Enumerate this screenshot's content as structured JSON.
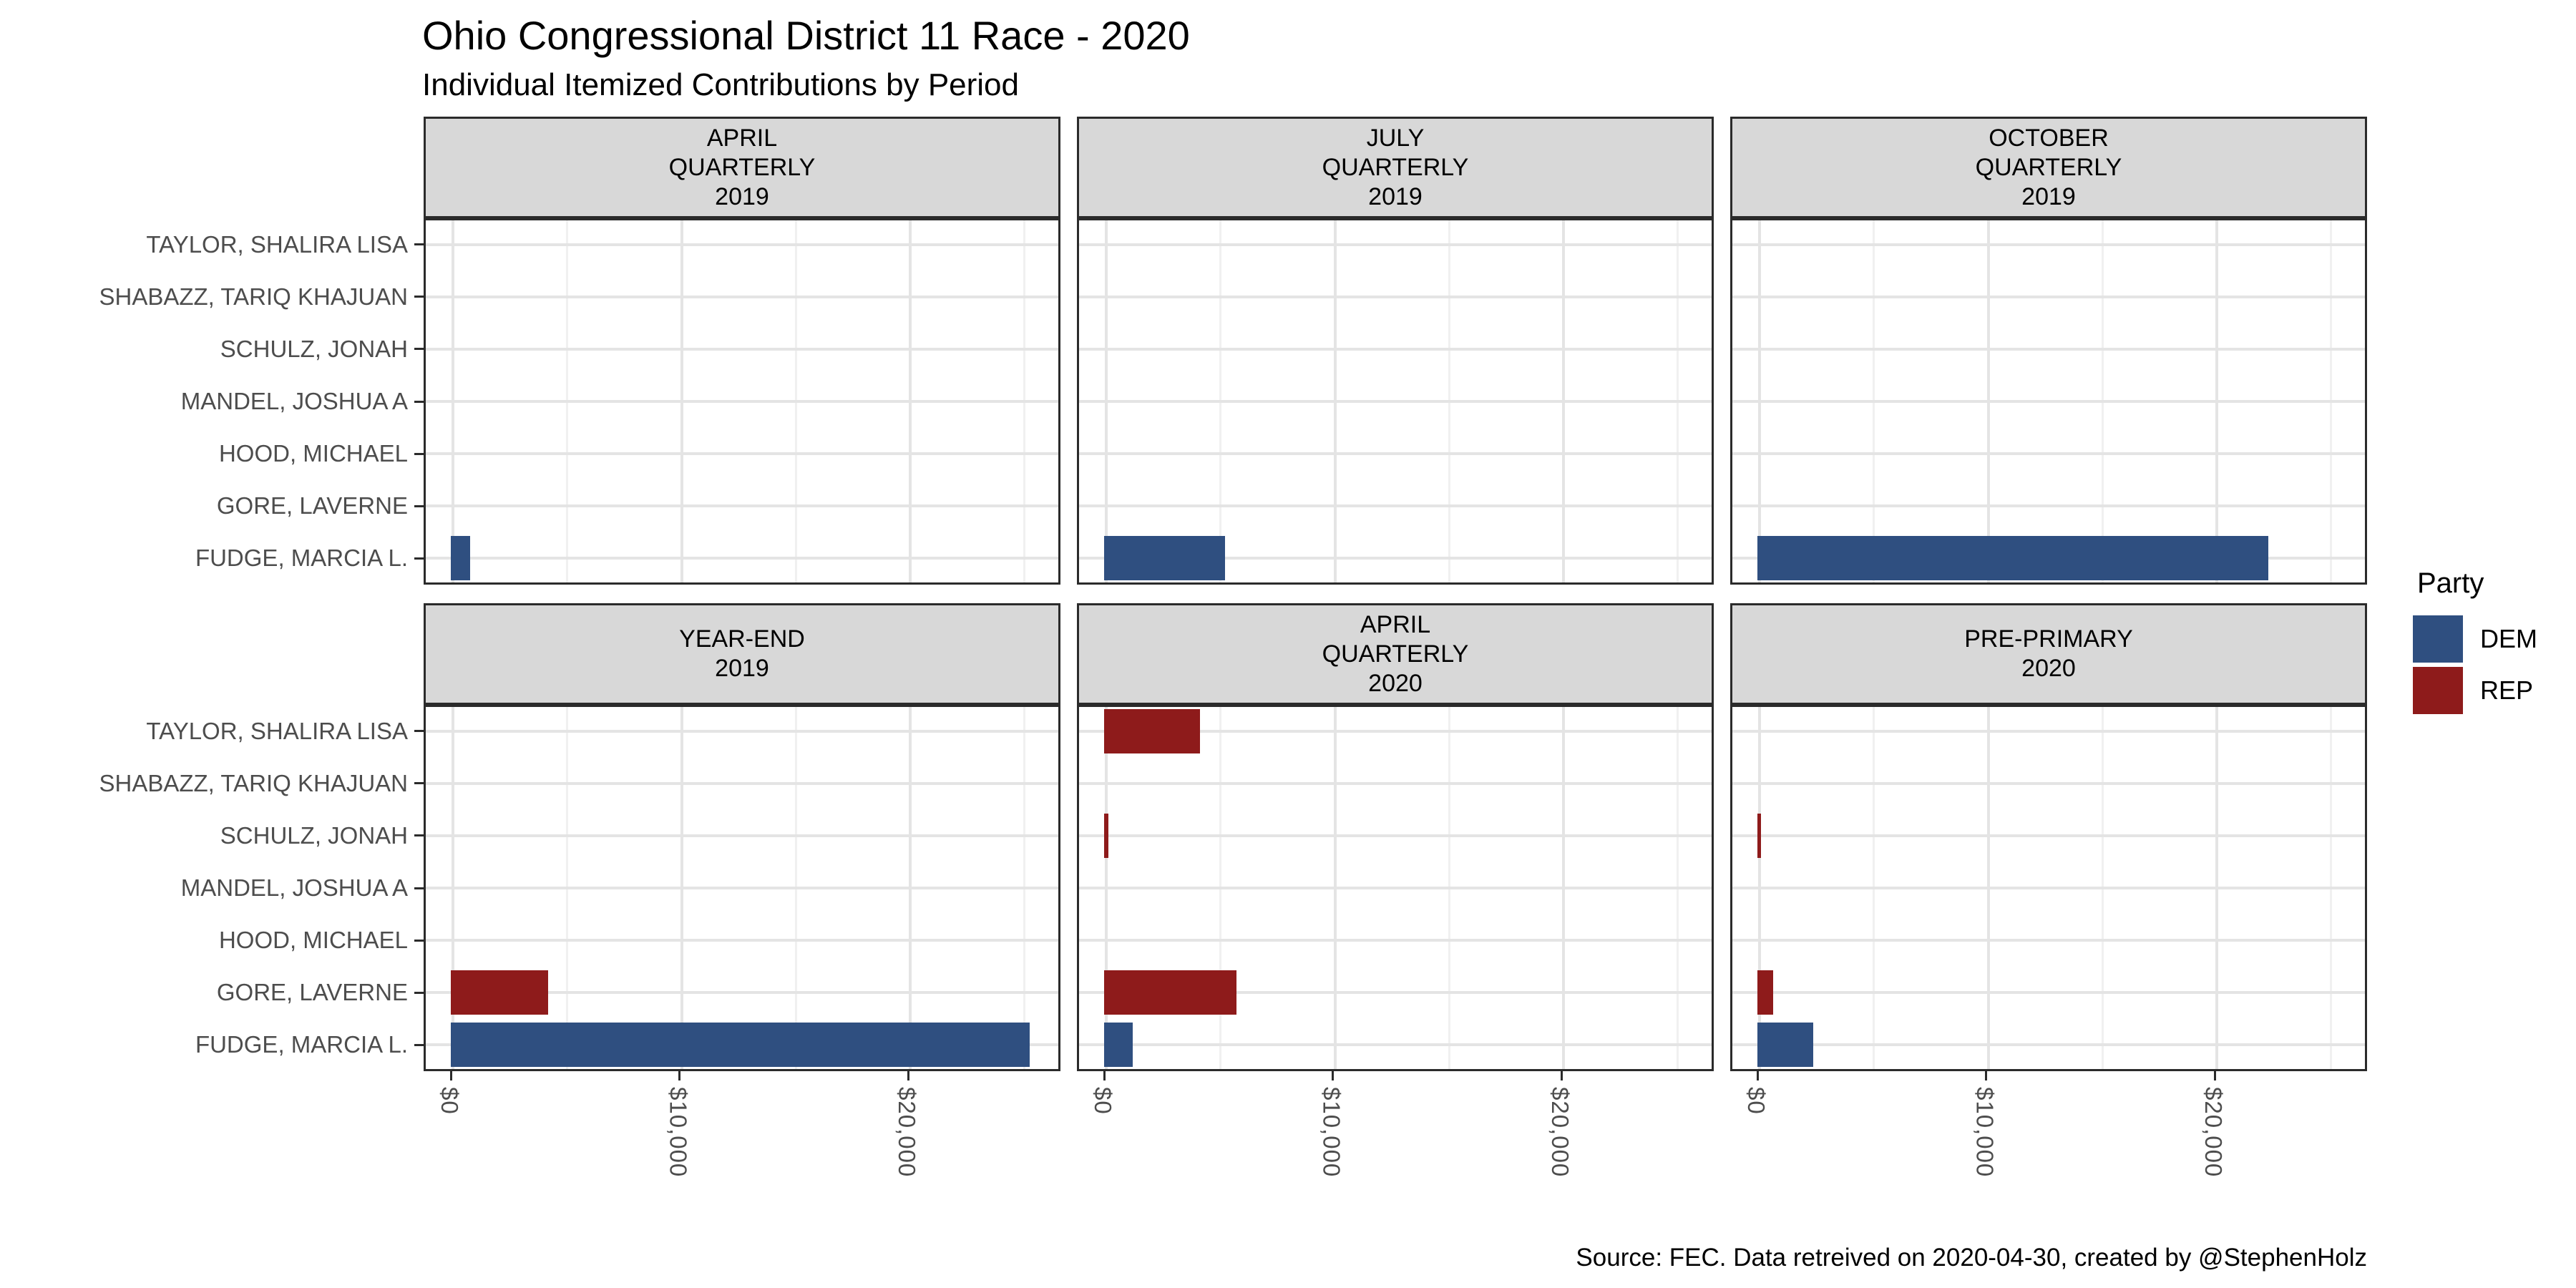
{
  "header": {
    "title": "Ohio Congressional District 11 Race - 2020",
    "subtitle": "Individual Itemized Contributions by Period"
  },
  "footer": {
    "caption": "Source: FEC. Data retreived on 2020-04-30, created by @StephenHolz"
  },
  "legend": {
    "title": "Party",
    "items": [
      {
        "label": "DEM",
        "color": "#2F4F80"
      },
      {
        "label": "REP",
        "color": "#8E1B1B"
      }
    ]
  },
  "chart_data": {
    "type": "bar",
    "orientation": "horizontal",
    "title": "Ohio Congressional District 11 Race - 2020",
    "subtitle": "Individual Itemized Contributions by Period",
    "candidates_top_to_bottom": [
      "TAYLOR, SHALIRA LISA",
      "SHABAZZ, TARIQ KHAJUAN",
      "SCHULZ, JONAH",
      "MANDEL, JOSHUA A",
      "HOOD, MICHAEL",
      "GORE, LAVERNE",
      "FUDGE, MARCIA L."
    ],
    "x_ticks": [
      {
        "label": "$0",
        "value": 0
      },
      {
        "label": "$10,000",
        "value": 10000
      },
      {
        "label": "$20,000",
        "value": 20000
      }
    ],
    "x_minor_ticks": [
      5000,
      15000,
      25000
    ],
    "xlim": [
      -1190,
      26660
    ],
    "grid": "major-and-minor-x, major-y",
    "legend_position": "right",
    "party_colors": {
      "DEM": "#2F4F80",
      "REP": "#8E1B1B"
    },
    "facets": [
      {
        "period_lines": [
          "APRIL",
          "QUARTERLY",
          "2019"
        ],
        "bars": [
          {
            "candidate": "FUDGE, MARCIA L.",
            "party": "DEM",
            "amount": 850
          }
        ]
      },
      {
        "period_lines": [
          "JULY",
          "QUARTERLY",
          "2019"
        ],
        "bars": [
          {
            "candidate": "FUDGE, MARCIA L.",
            "party": "DEM",
            "amount": 5300
          }
        ]
      },
      {
        "period_lines": [
          "OCTOBER",
          "QUARTERLY",
          "2019"
        ],
        "bars": [
          {
            "candidate": "FUDGE, MARCIA L.",
            "party": "DEM",
            "amount": 22350
          }
        ]
      },
      {
        "period_lines": [
          "YEAR-END",
          "2019"
        ],
        "bars": [
          {
            "candidate": "GORE, LAVERNE",
            "party": "REP",
            "amount": 4250
          },
          {
            "candidate": "FUDGE, MARCIA L.",
            "party": "DEM",
            "amount": 25300
          }
        ]
      },
      {
        "period_lines": [
          "APRIL",
          "QUARTERLY",
          "2020"
        ],
        "bars": [
          {
            "candidate": "TAYLOR, SHALIRA LISA",
            "party": "REP",
            "amount": 4200
          },
          {
            "candidate": "SCHULZ, JONAH",
            "party": "REP",
            "amount": 175
          },
          {
            "candidate": "GORE, LAVERNE",
            "party": "REP",
            "amount": 5800
          },
          {
            "candidate": "FUDGE, MARCIA L.",
            "party": "DEM",
            "amount": 1250
          }
        ]
      },
      {
        "period_lines": [
          "PRE-PRIMARY",
          "2020"
        ],
        "bars": [
          {
            "candidate": "SCHULZ, JONAH",
            "party": "REP",
            "amount": 150
          },
          {
            "candidate": "GORE, LAVERNE",
            "party": "REP",
            "amount": 700
          },
          {
            "candidate": "FUDGE, MARCIA L.",
            "party": "DEM",
            "amount": 2450
          }
        ]
      }
    ]
  }
}
